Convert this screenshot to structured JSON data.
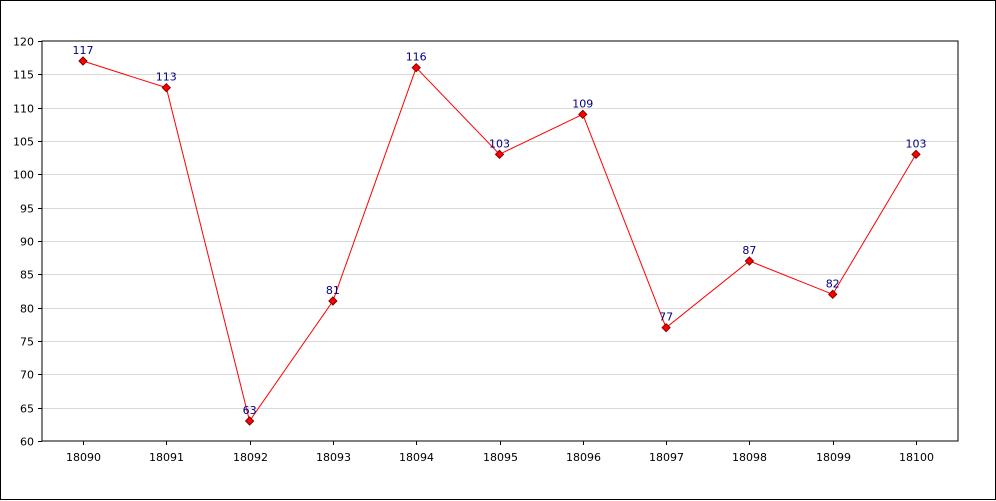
{
  "chart_data": {
    "type": "line",
    "title": "",
    "xlabel": "",
    "ylabel": "",
    "x": [
      "18090",
      "18091",
      "18092",
      "18093",
      "18094",
      "18095",
      "18096",
      "18097",
      "18098",
      "18099",
      "18100"
    ],
    "series": [
      {
        "values": [
          117,
          113,
          63,
          81,
          116,
          103,
          109,
          77,
          87,
          82,
          103
        ]
      }
    ],
    "ylim": [
      60,
      120
    ],
    "yticks": [
      60,
      65,
      70,
      75,
      80,
      85,
      90,
      95,
      100,
      105,
      110,
      115,
      120
    ],
    "grid": "horizontal",
    "legend": "none",
    "colors": {
      "line": "#ff0000",
      "marker_fill": "#ff0000",
      "marker_stroke": "#7f0000",
      "data_label": "#000080",
      "grid": "#d9d9d9",
      "axis": "#000000"
    }
  }
}
